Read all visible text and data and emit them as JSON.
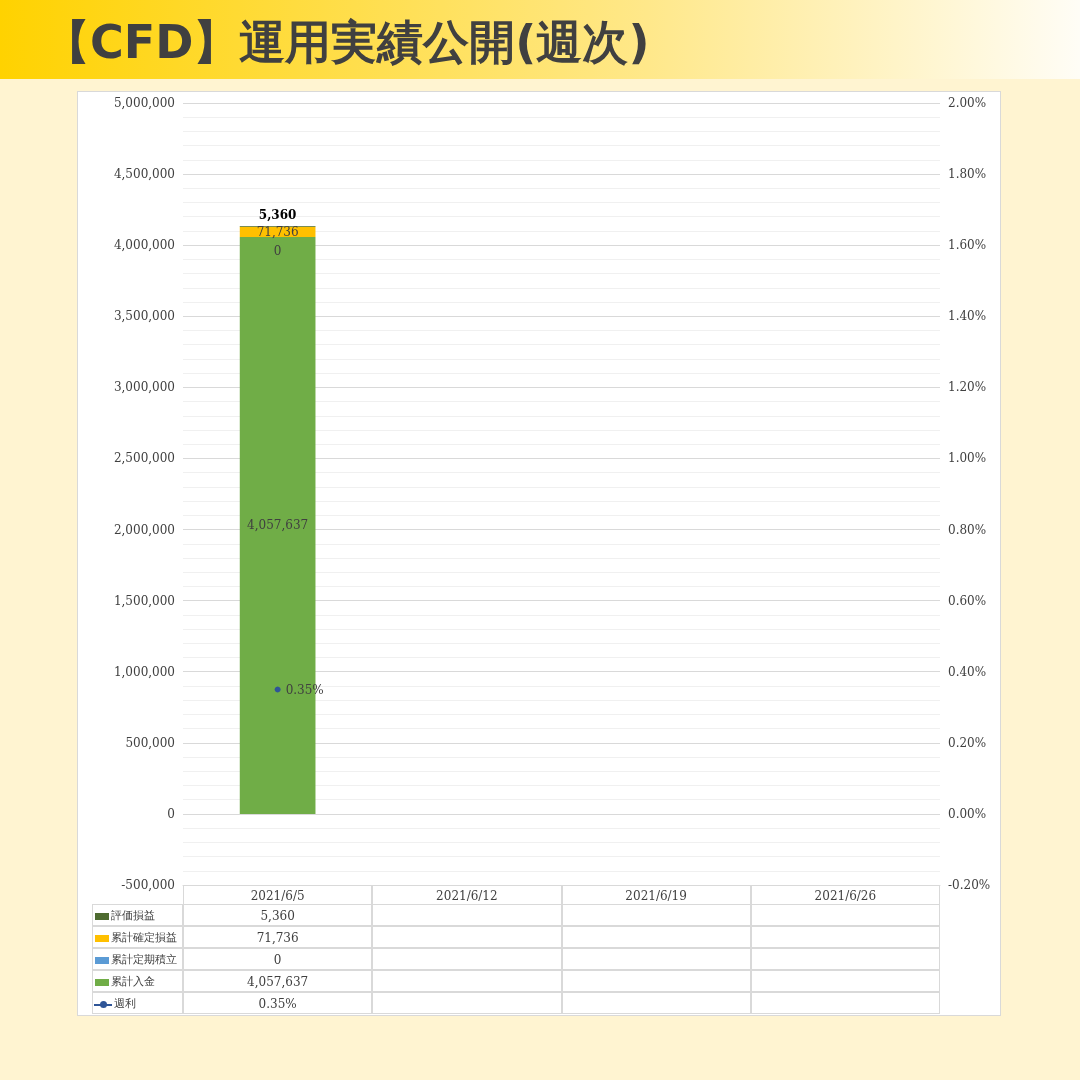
{
  "chart_data": {
    "type": "bar",
    "title": "【CFD】運用実績公開(週次)",
    "categories": [
      "2021/6/5",
      "2021/6/12",
      "2021/6/19",
      "2021/6/26"
    ],
    "stacked": true,
    "legend": "bottom",
    "grid": true,
    "marker": "circle",
    "ylim": [
      -500000,
      5000000
    ],
    "yticks": [
      {
        "value": -500000,
        "label": "-500,000"
      },
      0,
      {
        "value": 500000,
        "label": "500,000"
      },
      {
        "value": 1000000,
        "label": "1,000,000"
      },
      {
        "value": 1500000,
        "label": "1,500,000"
      },
      {
        "value": 2000000,
        "label": "2,000,000"
      },
      {
        "value": 2500000,
        "label": "2,500,000"
      },
      {
        "value": 3000000,
        "label": "3,000,000"
      },
      {
        "value": 3500000,
        "label": "3,500,000"
      },
      {
        "value": 4000000,
        "label": "4,000,000"
      },
      {
        "value": 4500000,
        "label": "4,500,000"
      },
      {
        "value": 5000000,
        "label": "5,000,000"
      }
    ],
    "y2lim": [
      -0.2,
      2.0
    ],
    "y2ticks": [
      {
        "value": -0.2,
        "label": "-0.20%"
      },
      {
        "value": 0,
        "label": "0.00%"
      },
      {
        "value": 0.2,
        "label": "0.20%"
      },
      {
        "value": 0.4,
        "label": "0.40%"
      },
      {
        "value": 0.6,
        "label": "0.60%"
      },
      {
        "value": 0.8,
        "label": "0.80%"
      },
      {
        "value": 1.0,
        "label": "1.00%"
      },
      {
        "value": 1.2,
        "label": "1.20%"
      },
      {
        "value": 1.4,
        "label": "1.40%"
      },
      {
        "value": 1.6,
        "label": "1.60%"
      },
      {
        "value": 1.8,
        "label": "1.80%"
      },
      {
        "value": 2.0,
        "label": "2.00%"
      }
    ],
    "series": [
      {
        "name": "累計入金",
        "color": "#70ad47",
        "values": [
          4057637,
          null,
          null,
          null
        ],
        "value_labels": [
          "4,057,637",
          null,
          null,
          null
        ]
      },
      {
        "name": "累計定期積立",
        "color": "#5b9bd5",
        "values": [
          0,
          null,
          null,
          null
        ],
        "value_labels": [
          "0",
          null,
          null,
          null
        ]
      },
      {
        "name": "累計確定損益",
        "color": "#ffc000",
        "values": [
          71736,
          null,
          null,
          null
        ],
        "value_labels": [
          "71,736",
          null,
          null,
          null
        ]
      },
      {
        "name": "評価損益",
        "color": "#4e6b30",
        "values": [
          5360,
          null,
          null,
          null
        ],
        "value_labels": [
          "5,360",
          null,
          null,
          null
        ]
      },
      {
        "name": "週利",
        "type": "line",
        "axis": "y2",
        "color": "#2f5597",
        "values": [
          0.35,
          null,
          null,
          null
        ],
        "value_labels": [
          "0.35%",
          null,
          null,
          null
        ]
      }
    ]
  }
}
